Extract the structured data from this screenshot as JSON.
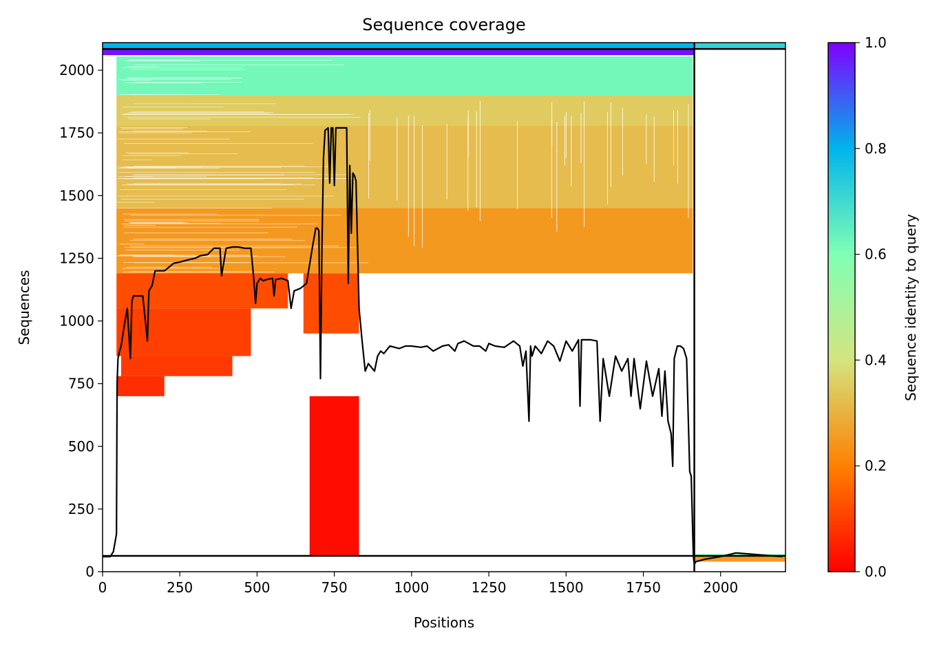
{
  "chart_data": {
    "type": "heatmap",
    "title": "Sequence coverage",
    "xlabel": "Positions",
    "ylabel": "Sequences",
    "colorbar_label": "Sequence identity to query",
    "xlim": [
      0,
      2210
    ],
    "ylim": [
      0,
      2110
    ],
    "x_ticks": [
      0,
      250,
      500,
      750,
      1000,
      1250,
      1500,
      1750,
      2000
    ],
    "y_ticks": [
      0,
      250,
      500,
      750,
      1000,
      1250,
      1500,
      1750,
      2000
    ],
    "colorbar_ticks": [
      "0.0",
      "0.2",
      "0.4",
      "0.6",
      "0.8",
      "1.0"
    ],
    "colormap": "rainbow",
    "colormap_stops": [
      "#ff0000",
      "#ff8000",
      "#d4e480",
      "#80ffb4",
      "#00b4ec",
      "#8000ff"
    ],
    "chain_boundary_x": 1915,
    "msa_row_boundaries_y": [
      63,
      2085
    ],
    "coverage_blocks": [
      {
        "x0": 45,
        "x1": 1910,
        "y0": 1900,
        "y1": 2055,
        "identity": 0.62
      },
      {
        "x0": 45,
        "x1": 1910,
        "y0": 1780,
        "y1": 1900,
        "identity": 0.35
      },
      {
        "x0": 45,
        "x1": 1910,
        "y0": 1450,
        "y1": 1780,
        "identity": 0.32
      },
      {
        "x0": 45,
        "x1": 1910,
        "y0": 1190,
        "y1": 1450,
        "identity": 0.25
      },
      {
        "x0": 45,
        "x1": 600,
        "y0": 1050,
        "y1": 1190,
        "identity": 0.12
      },
      {
        "x0": 650,
        "x1": 830,
        "y0": 950,
        "y1": 1190,
        "identity": 0.12
      },
      {
        "x0": 45,
        "x1": 480,
        "y0": 860,
        "y1": 1050,
        "identity": 0.1
      },
      {
        "x0": 60,
        "x1": 420,
        "y0": 780,
        "y1": 860,
        "identity": 0.09
      },
      {
        "x0": 45,
        "x1": 200,
        "y0": 700,
        "y1": 780,
        "identity": 0.07
      },
      {
        "x0": 670,
        "x1": 830,
        "y0": 65,
        "y1": 700,
        "identity": 0.02
      },
      {
        "x0": 1915,
        "x1": 2210,
        "y0": 40,
        "y1": 60,
        "identity": 0.25
      },
      {
        "x0": 1915,
        "x1": 2210,
        "y0": 60,
        "y1": 70,
        "identity": 0.62
      },
      {
        "x0": 0,
        "x1": 1915,
        "y0": 2060,
        "y1": 2085,
        "identity": 0.98
      },
      {
        "x0": 0,
        "x1": 1915,
        "y0": 2085,
        "y1": 2110,
        "identity": 0.8
      },
      {
        "x0": 1915,
        "x1": 2210,
        "y0": 2085,
        "y1": 2110,
        "identity": 0.72
      }
    ],
    "coverage_line": {
      "x": [
        0,
        25,
        35,
        45,
        47,
        50,
        55,
        60,
        70,
        80,
        90,
        95,
        100,
        110,
        130,
        145,
        150,
        160,
        170,
        180,
        200,
        220,
        230,
        250,
        280,
        300,
        315,
        340,
        360,
        380,
        385,
        400,
        420,
        440,
        460,
        480,
        490,
        495,
        500,
        510,
        520,
        530,
        550,
        555,
        560,
        580,
        600,
        610,
        620,
        640,
        660,
        680,
        690,
        695,
        700,
        705,
        710,
        715,
        720,
        730,
        735,
        740,
        745,
        750,
        755,
        760,
        770,
        780,
        790,
        795,
        800,
        805,
        810,
        815,
        820,
        830,
        840,
        850,
        860,
        880,
        890,
        900,
        910,
        930,
        960,
        980,
        1000,
        1030,
        1050,
        1070,
        1100,
        1120,
        1140,
        1150,
        1170,
        1200,
        1220,
        1240,
        1250,
        1270,
        1300,
        1330,
        1350,
        1360,
        1370,
        1380,
        1385,
        1390,
        1400,
        1420,
        1440,
        1460,
        1480,
        1500,
        1520,
        1540,
        1545,
        1550,
        1570,
        1580,
        1600,
        1610,
        1620,
        1640,
        1660,
        1680,
        1700,
        1710,
        1720,
        1740,
        1760,
        1780,
        1800,
        1810,
        1820,
        1830,
        1840,
        1845,
        1850,
        1860,
        1870,
        1880,
        1890,
        1900,
        1905,
        1912,
        1915,
        1920,
        1950,
        2000,
        2050,
        2100,
        2150,
        2200,
        2210
      ],
      "y": [
        60,
        60,
        80,
        150,
        750,
        850,
        880,
        900,
        980,
        1050,
        850,
        1080,
        1100,
        1100,
        1100,
        920,
        1120,
        1140,
        1200,
        1200,
        1200,
        1220,
        1230,
        1235,
        1245,
        1250,
        1260,
        1265,
        1290,
        1290,
        1180,
        1290,
        1295,
        1295,
        1290,
        1290,
        1160,
        1070,
        1150,
        1170,
        1160,
        1165,
        1170,
        1100,
        1165,
        1170,
        1160,
        1050,
        1120,
        1130,
        1150,
        1300,
        1370,
        1370,
        1360,
        770,
        1300,
        1650,
        1760,
        1770,
        1550,
        1770,
        1770,
        1540,
        1770,
        1770,
        1770,
        1770,
        1770,
        1150,
        1620,
        1350,
        1590,
        1580,
        1560,
        1050,
        920,
        800,
        830,
        800,
        860,
        880,
        870,
        900,
        890,
        900,
        900,
        895,
        900,
        880,
        900,
        905,
        880,
        910,
        920,
        900,
        900,
        880,
        910,
        900,
        895,
        920,
        900,
        820,
        880,
        600,
        900,
        860,
        900,
        870,
        920,
        900,
        840,
        920,
        880,
        925,
        660,
        925,
        925,
        925,
        920,
        600,
        850,
        700,
        860,
        800,
        850,
        700,
        850,
        650,
        840,
        700,
        810,
        620,
        800,
        600,
        550,
        420,
        850,
        900,
        900,
        890,
        850,
        400,
        380,
        60,
        30,
        40,
        50,
        60,
        75,
        70,
        65,
        60
      ]
    }
  }
}
